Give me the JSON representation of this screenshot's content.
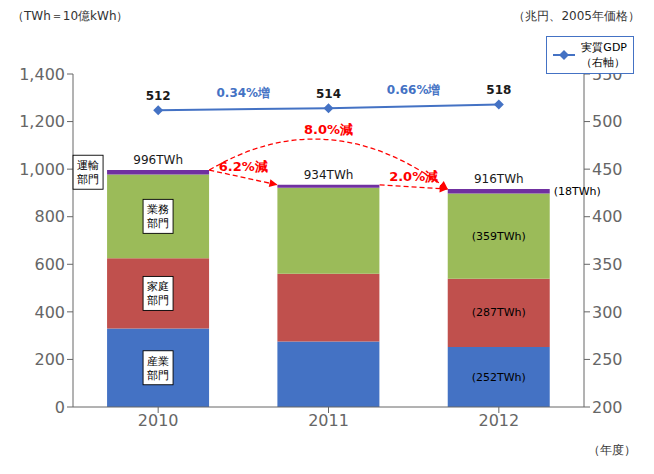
{
  "chart_data": {
    "type": "bar",
    "stacked": true,
    "grid": false,
    "legend": "upper right",
    "xlabel": "（年度）",
    "ylabel": "（TWh＝10億kWh）",
    "y2label": "（兆円、2005年価格）",
    "categories": [
      "2010",
      "2011",
      "2012"
    ],
    "series": [
      {
        "name": "産業\n部門",
        "color": "#4472C4",
        "values": [
          330,
          275,
          252
        ],
        "value_labels": [
          null,
          null,
          "(252TWh)"
        ]
      },
      {
        "name": "家庭\n部門",
        "color": "#C0504D",
        "values": [
          295,
          285,
          287
        ],
        "value_labels": [
          null,
          null,
          "(287TWh)"
        ]
      },
      {
        "name": "業務\n部門",
        "color": "#9BBB59",
        "values": [
          353,
          362,
          359
        ],
        "value_labels": [
          null,
          null,
          "(359TWh)"
        ]
      },
      {
        "name": "運輸\n部門",
        "color": "#7030A0",
        "values": [
          18,
          12,
          18
        ],
        "value_labels": [
          null,
          null,
          "(18TWh)"
        ]
      },
      {
        "name": "実質GDP\n（右軸）",
        "type": "line",
        "axis": "y2",
        "color": "#4472C4",
        "marker": "diamond",
        "data_labels": true,
        "values": [
          512,
          514,
          518
        ]
      }
    ],
    "totals": {
      "values": [
        996,
        934,
        916
      ],
      "value_labels": [
        "996TWh",
        "934TWh",
        "916TWh"
      ]
    },
    "total_changes": [
      {
        "text": "6.2%減",
        "from": "2010",
        "to": "2011",
        "color": "red"
      },
      {
        "text": "8.0%減",
        "from": "2010",
        "to": "2012",
        "color": "red"
      },
      {
        "text": "2.0%減",
        "from": "2011",
        "to": "2012",
        "color": "red"
      }
    ],
    "gdp_changes": [
      {
        "text": "0.34%増",
        "from": "2010",
        "to": "2011",
        "color": "#4472C4"
      },
      {
        "text": "0.66%増",
        "from": "2011",
        "to": "2012",
        "color": "#4472C4"
      }
    ],
    "ylim": [
      0,
      1400
    ],
    "yticks": [
      0,
      200,
      400,
      600,
      800,
      {
        "value": 1000,
        "label": "1,000"
      },
      {
        "value": 1200,
        "label": "1,200"
      },
      {
        "value": 1400,
        "label": "1,400"
      }
    ],
    "y2lim": [
      200,
      550
    ],
    "y2ticks": [
      200,
      250,
      300,
      350,
      400,
      450,
      500,
      550
    ]
  }
}
